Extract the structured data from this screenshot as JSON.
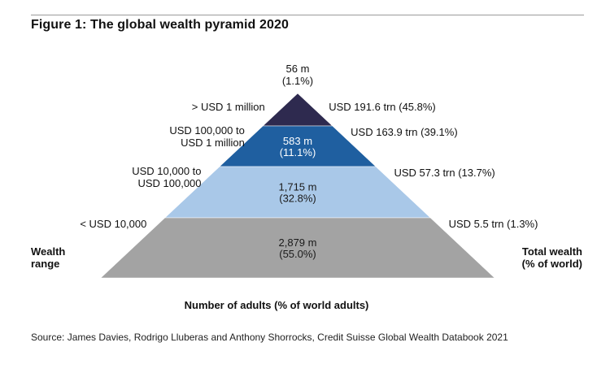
{
  "figure": {
    "title": "Figure 1: The global wealth pyramid 2020",
    "source": "Source: James Davies, Rodrigo Lluberas and Anthony Shorrocks, Credit Suisse Global Wealth Databook 2021"
  },
  "chart_data": {
    "type": "pyramid",
    "title": "Figure 1: The global wealth pyramid 2020",
    "left_axis_title": [
      "Wealth",
      "range"
    ],
    "right_axis_title": [
      "Total wealth",
      "(% of world)"
    ],
    "bottom_axis_title": "Number of adults (% of world adults)",
    "tiers": [
      {
        "wealth_range": [
          "> USD 1 million"
        ],
        "adults_label": [
          "56 m",
          "(1.1%)"
        ],
        "adults_millions": 56,
        "adults_pct": 1.1,
        "wealth_label": "USD 191.6 trn (45.8%)",
        "wealth_trn": 191.6,
        "wealth_pct": 45.8,
        "color": "#2e2a4f"
      },
      {
        "wealth_range": [
          "USD 100,000 to",
          "USD 1 million"
        ],
        "adults_label": [
          "583 m",
          "(11.1%)"
        ],
        "adults_millions": 583,
        "adults_pct": 11.1,
        "wealth_label": "USD 163.9 trn (39.1%)",
        "wealth_trn": 163.9,
        "wealth_pct": 39.1,
        "color": "#1f5fa0"
      },
      {
        "wealth_range": [
          "USD 10,000 to",
          "USD 100,000"
        ],
        "adults_label": [
          "1,715 m",
          "(32.8%)"
        ],
        "adults_millions": 1715,
        "adults_pct": 32.8,
        "wealth_label": "USD 57.3 trn (13.7%)",
        "wealth_trn": 57.3,
        "wealth_pct": 13.7,
        "color": "#a9c8e8"
      },
      {
        "wealth_range": [
          "< USD 10,000"
        ],
        "adults_label": [
          "2,879 m",
          "(55.0%)"
        ],
        "adults_millions": 2879,
        "adults_pct": 55.0,
        "wealth_label": "USD 5.5 trn (1.3%)",
        "wealth_trn": 5.5,
        "wealth_pct": 1.3,
        "color": "#a3a3a3"
      }
    ]
  }
}
